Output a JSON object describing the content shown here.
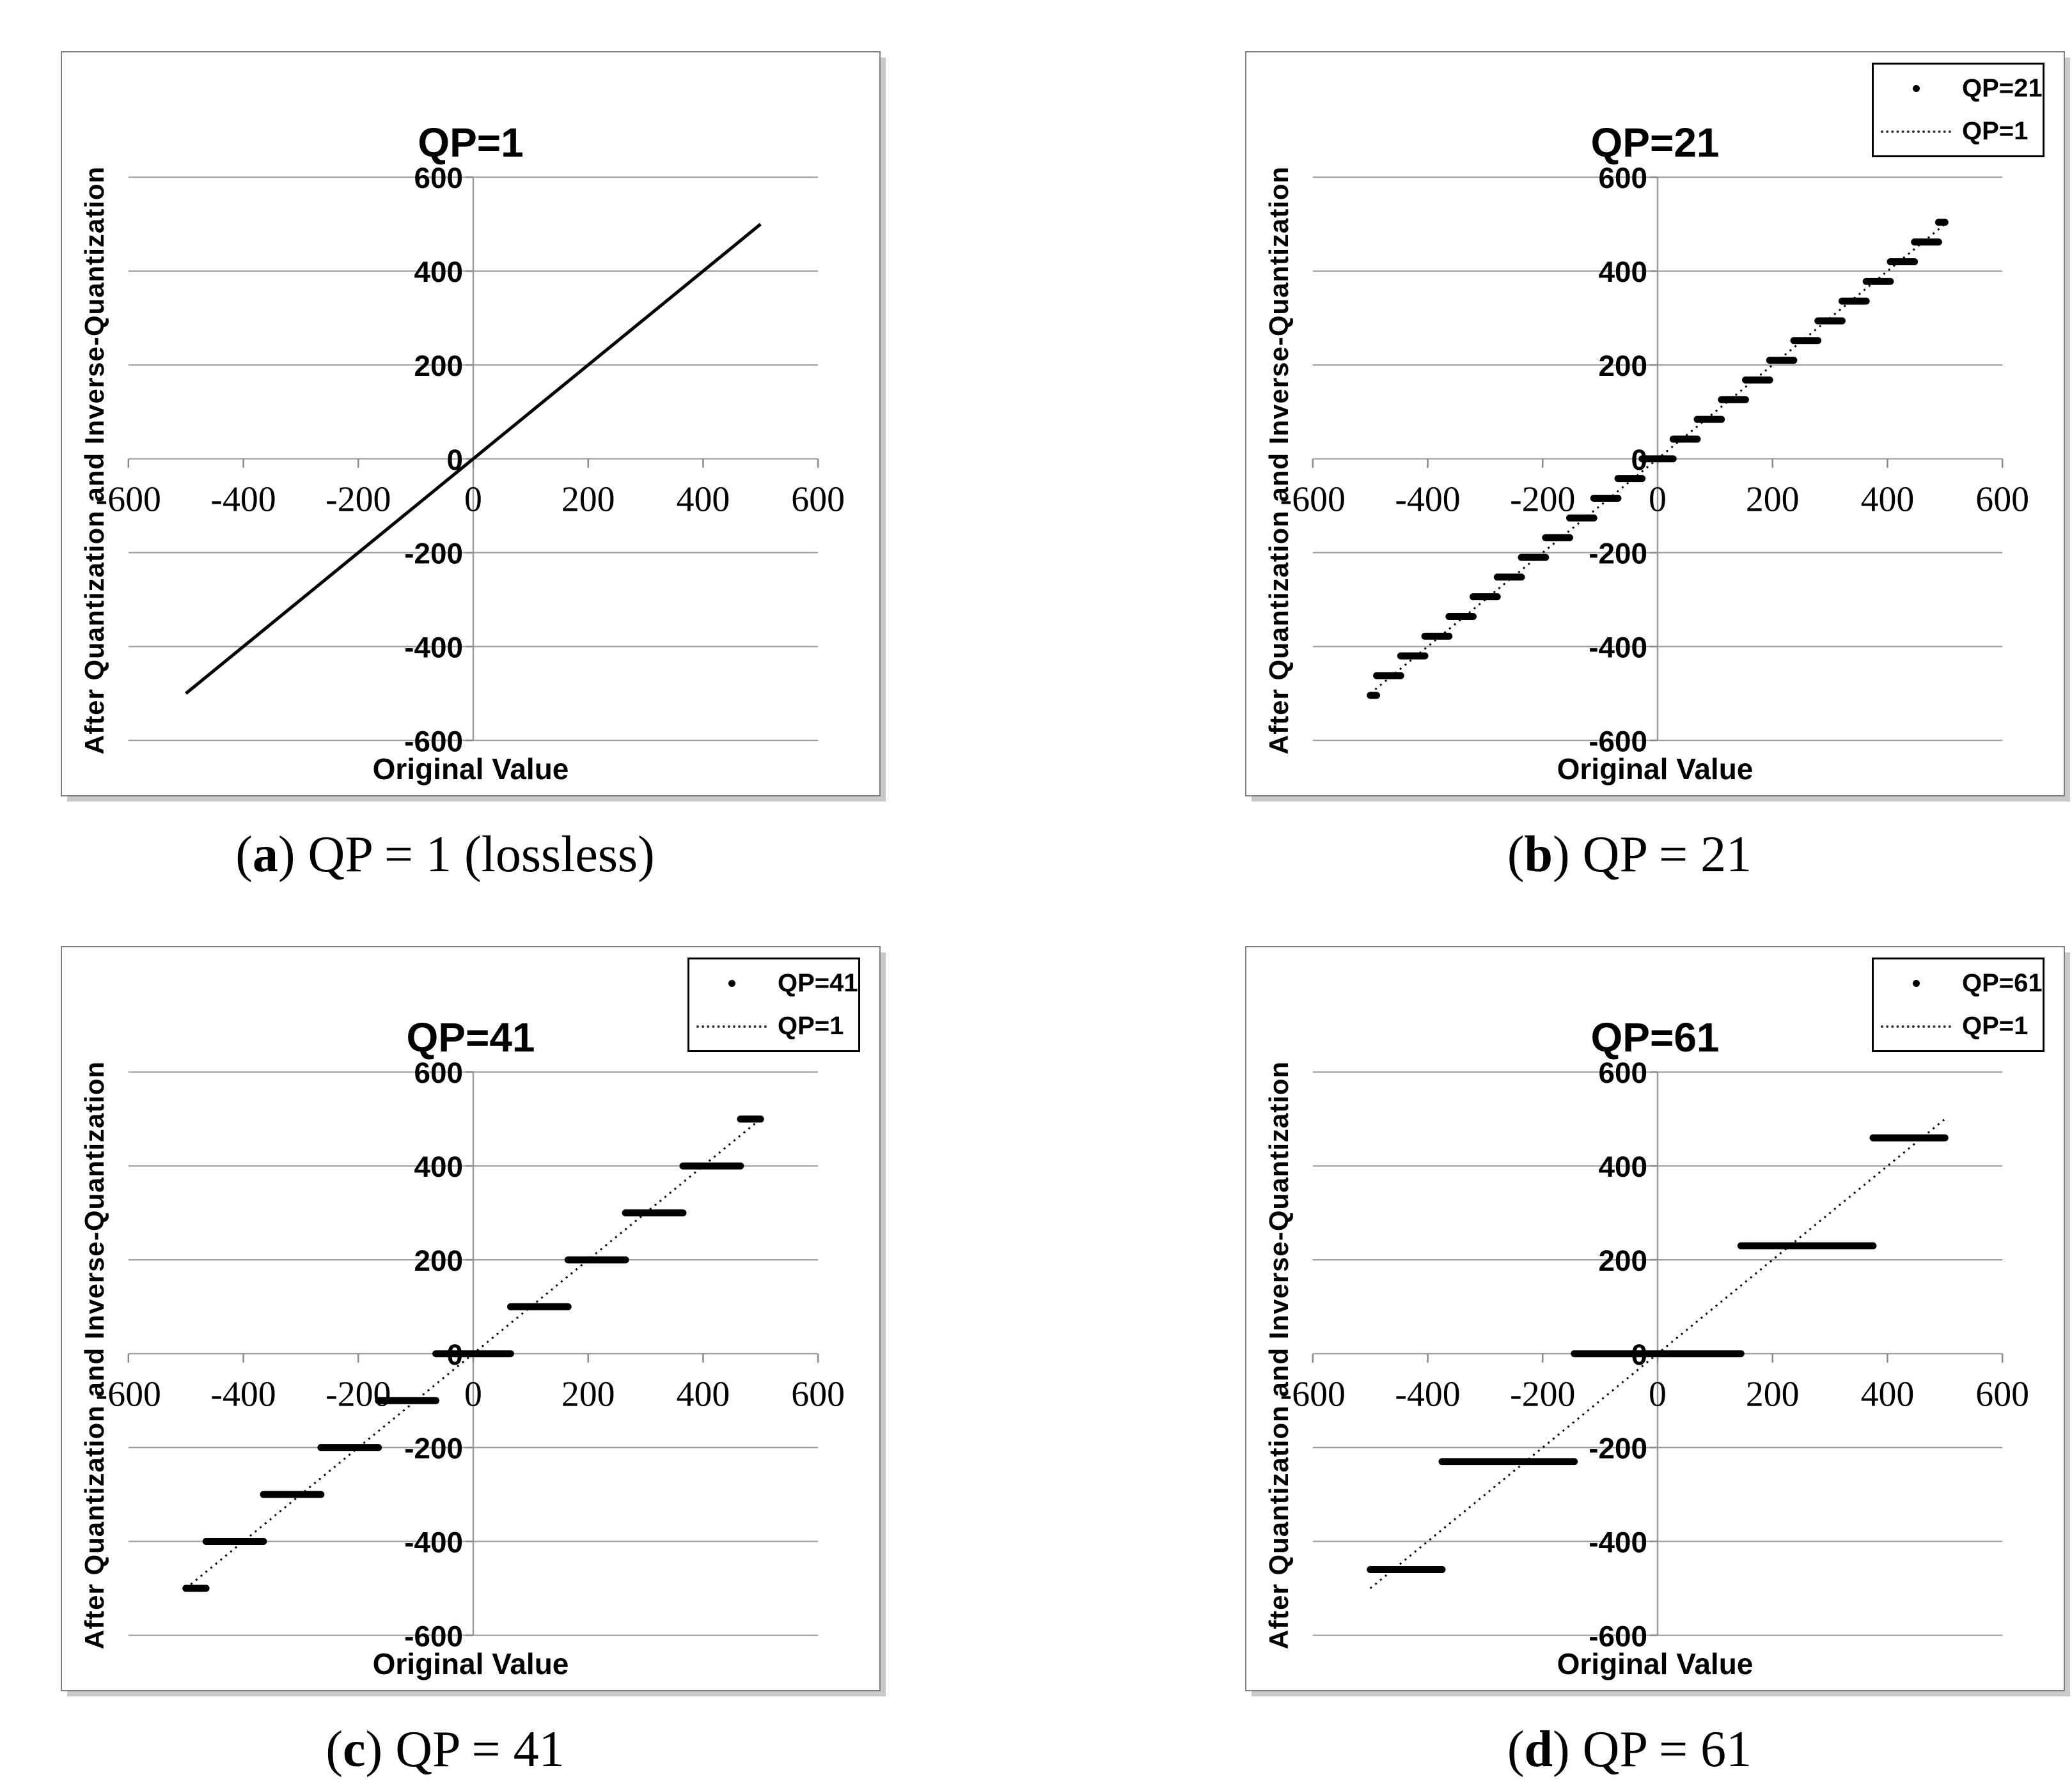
{
  "figure": {
    "colors": {
      "background": "#ffffff",
      "data": "#000000",
      "grid": "#9c9c9c",
      "tick": "#8a8a8a",
      "panel_border": "#7f7f7f",
      "panel_shadow": "#c9c9c9",
      "text": "#000000"
    }
  },
  "charts": [
    {
      "title": "QP=1",
      "caption_prefix": "(",
      "caption_label": "a",
      "caption_suffix": ")",
      "caption_text": "QP = 1 (lossless)",
      "xlabel": "Original Value",
      "ylabel": "After Quantization and Inverse-Quantization",
      "legend": []
    },
    {
      "title": "QP=21",
      "caption_prefix": "(",
      "caption_label": "b",
      "caption_suffix": ")",
      "caption_text": "QP = 21",
      "xlabel": "Original Value",
      "ylabel": "After Quantization and Inverse-Quantization",
      "legend": [
        {
          "marker": "dot",
          "label": "QP=21"
        },
        {
          "marker": "dotted-line",
          "label": "QP=1"
        }
      ]
    },
    {
      "title": "QP=41",
      "caption_prefix": "(",
      "caption_label": "c",
      "caption_suffix": ")",
      "caption_text": "QP = 41",
      "xlabel": "Original Value",
      "ylabel": "After Quantization and Inverse-Quantization",
      "legend": [
        {
          "marker": "dot",
          "label": "QP=41"
        },
        {
          "marker": "dotted-line",
          "label": "QP=1"
        }
      ]
    },
    {
      "title": "QP=61",
      "caption_prefix": "(",
      "caption_label": "d",
      "caption_suffix": ")",
      "caption_text": "QP = 61",
      "xlabel": "Original Value",
      "ylabel": "After Quantization and Inverse-Quantization",
      "legend": [
        {
          "marker": "dot",
          "label": "QP=61"
        },
        {
          "marker": "dotted-line",
          "label": "QP=1"
        }
      ]
    }
  ],
  "chart_data": [
    {
      "id": "a",
      "type": "line",
      "title": "QP=1",
      "xlabel": "Original Value",
      "ylabel": "After Quantization and Inverse-Quantization",
      "xlim": [
        -600,
        600
      ],
      "ylim": [
        -600,
        600
      ],
      "xticks": [
        -600,
        -400,
        -200,
        0,
        200,
        400,
        600
      ],
      "yticks": [
        600,
        400,
        200,
        0,
        -200,
        -400,
        -600
      ],
      "grid": "horizontal",
      "legend_position": "none",
      "series": [
        {
          "name": "QP=1",
          "style": "solid",
          "points": [
            [
              -500,
              -500
            ],
            [
              500,
              500
            ]
          ]
        }
      ]
    },
    {
      "id": "b",
      "type": "scatter-steps",
      "title": "QP=21",
      "xlabel": "Original Value",
      "ylabel": "After Quantization and Inverse-Quantization",
      "xlim": [
        -600,
        600
      ],
      "ylim": [
        -600,
        600
      ],
      "xticks": [
        -600,
        -400,
        -200,
        0,
        200,
        400,
        600
      ],
      "yticks": [
        600,
        400,
        200,
        0,
        -200,
        -400,
        -600
      ],
      "grid": "horizontal",
      "legend_position": "top-right",
      "series": [
        {
          "name": "QP=21",
          "style": "steps",
          "step_size": 42,
          "segments": [
            {
              "y": -504,
              "x1": -500,
              "x2": -489
            },
            {
              "y": -462,
              "x1": -489,
              "x2": -447
            },
            {
              "y": -420,
              "x1": -447,
              "x2": -405
            },
            {
              "y": -378,
              "x1": -405,
              "x2": -363
            },
            {
              "y": -336,
              "x1": -363,
              "x2": -321
            },
            {
              "y": -294,
              "x1": -321,
              "x2": -279
            },
            {
              "y": -252,
              "x1": -279,
              "x2": -237
            },
            {
              "y": -210,
              "x1": -237,
              "x2": -195
            },
            {
              "y": -168,
              "x1": -195,
              "x2": -153
            },
            {
              "y": -126,
              "x1": -153,
              "x2": -111
            },
            {
              "y": -84,
              "x1": -111,
              "x2": -69
            },
            {
              "y": -42,
              "x1": -69,
              "x2": -27
            },
            {
              "y": 0,
              "x1": -27,
              "x2": 27
            },
            {
              "y": 42,
              "x1": 27,
              "x2": 69
            },
            {
              "y": 84,
              "x1": 69,
              "x2": 111
            },
            {
              "y": 126,
              "x1": 111,
              "x2": 153
            },
            {
              "y": 168,
              "x1": 153,
              "x2": 195
            },
            {
              "y": 210,
              "x1": 195,
              "x2": 237
            },
            {
              "y": 252,
              "x1": 237,
              "x2": 279
            },
            {
              "y": 294,
              "x1": 279,
              "x2": 321
            },
            {
              "y": 336,
              "x1": 321,
              "x2": 363
            },
            {
              "y": 378,
              "x1": 363,
              "x2": 405
            },
            {
              "y": 420,
              "x1": 405,
              "x2": 447
            },
            {
              "y": 462,
              "x1": 447,
              "x2": 489
            },
            {
              "y": 504,
              "x1": 489,
              "x2": 500
            }
          ]
        },
        {
          "name": "QP=1",
          "style": "dotted",
          "points": [
            [
              -500,
              -500
            ],
            [
              500,
              500
            ]
          ]
        }
      ]
    },
    {
      "id": "c",
      "type": "scatter-steps",
      "title": "QP=41",
      "xlabel": "Original Value",
      "ylabel": "After Quantization and Inverse-Quantization",
      "xlim": [
        -600,
        600
      ],
      "ylim": [
        -600,
        600
      ],
      "xticks": [
        -600,
        -400,
        -200,
        0,
        200,
        400,
        600
      ],
      "yticks": [
        600,
        400,
        200,
        0,
        -200,
        -400,
        -600
      ],
      "grid": "horizontal",
      "legend_position": "top-right",
      "series": [
        {
          "name": "QP=41",
          "style": "steps",
          "step_size": 100,
          "segments": [
            {
              "y": -500,
              "x1": -500,
              "x2": -465
            },
            {
              "y": -400,
              "x1": -465,
              "x2": -365
            },
            {
              "y": -300,
              "x1": -365,
              "x2": -265
            },
            {
              "y": -200,
              "x1": -265,
              "x2": -165
            },
            {
              "y": -100,
              "x1": -165,
              "x2": -65
            },
            {
              "y": 0,
              "x1": -65,
              "x2": 65
            },
            {
              "y": 100,
              "x1": 65,
              "x2": 165
            },
            {
              "y": 200,
              "x1": 165,
              "x2": 265
            },
            {
              "y": 300,
              "x1": 265,
              "x2": 365
            },
            {
              "y": 400,
              "x1": 365,
              "x2": 465
            },
            {
              "y": 500,
              "x1": 465,
              "x2": 500
            }
          ]
        },
        {
          "name": "QP=1",
          "style": "dotted",
          "points": [
            [
              -500,
              -500
            ],
            [
              500,
              500
            ]
          ]
        }
      ]
    },
    {
      "id": "d",
      "type": "scatter-steps",
      "title": "QP=61",
      "xlabel": "Original Value",
      "ylabel": "After Quantization and Inverse-Quantization",
      "xlim": [
        -600,
        600
      ],
      "ylim": [
        -600,
        600
      ],
      "xticks": [
        -600,
        -400,
        -200,
        0,
        200,
        400,
        600
      ],
      "yticks": [
        600,
        400,
        200,
        0,
        -200,
        -400,
        -600
      ],
      "grid": "horizontal",
      "legend_position": "top-right",
      "series": [
        {
          "name": "QP=61",
          "style": "steps",
          "step_size": 230,
          "segments": [
            {
              "y": -460,
              "x1": -500,
              "x2": -375
            },
            {
              "y": -230,
              "x1": -375,
              "x2": -145
            },
            {
              "y": 0,
              "x1": -145,
              "x2": 145
            },
            {
              "y": 230,
              "x1": 145,
              "x2": 375
            },
            {
              "y": 460,
              "x1": 375,
              "x2": 500
            }
          ]
        },
        {
          "name": "QP=1",
          "style": "dotted",
          "points": [
            [
              -500,
              -500
            ],
            [
              500,
              500
            ]
          ]
        }
      ]
    }
  ]
}
